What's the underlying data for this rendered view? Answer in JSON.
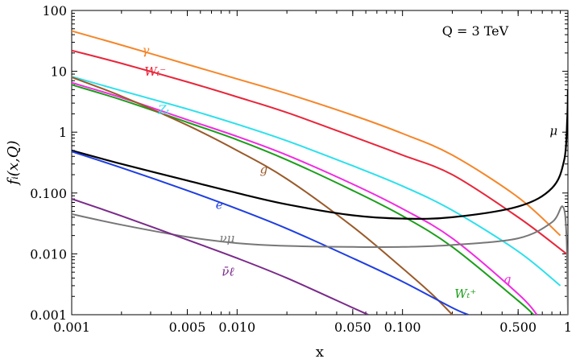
{
  "chart_data": {
    "type": "line",
    "xlabel": "x",
    "ylabel": "fᵢ(x,Q)",
    "annotation": "Q = 3 TeV",
    "xscale": "log",
    "yscale": "log",
    "xlim": [
      0.001,
      1
    ],
    "ylim": [
      0.001,
      100
    ],
    "grid": false,
    "x_ticks": [
      {
        "value": 0.001,
        "label": "0.001"
      },
      {
        "value": 0.005,
        "label": "0.005"
      },
      {
        "value": 0.01,
        "label": "0.010"
      },
      {
        "value": 0.05,
        "label": "0.050"
      },
      {
        "value": 0.1,
        "label": "0.100"
      },
      {
        "value": 0.5,
        "label": "0.500"
      },
      {
        "value": 1,
        "label": "1"
      }
    ],
    "y_ticks": [
      {
        "value": 100,
        "label": "100"
      },
      {
        "value": 10,
        "label": "10"
      },
      {
        "value": 1,
        "label": "1"
      },
      {
        "value": 0.1,
        "label": "0.100"
      },
      {
        "value": 0.01,
        "label": "0.010"
      },
      {
        "value": 0.001,
        "label": "0.001"
      }
    ],
    "series": [
      {
        "name": "γ",
        "color": "#f5862a",
        "x": [
          0.001,
          0.002,
          0.005,
          0.01,
          0.02,
          0.05,
          0.1,
          0.2,
          0.5,
          0.9
        ],
        "y": [
          46,
          27,
          13,
          7.5,
          4.3,
          1.9,
          0.95,
          0.42,
          0.085,
          0.02
        ],
        "label_at": [
          0.0028,
          19
        ]
      },
      {
        "name": "Wₜ⁻",
        "color": "#e8263a",
        "x": [
          0.001,
          0.002,
          0.005,
          0.01,
          0.02,
          0.05,
          0.1,
          0.2,
          0.5,
          0.9,
          1.0
        ],
        "y": [
          22,
          13.5,
          6.7,
          3.8,
          2.1,
          0.85,
          0.42,
          0.2,
          0.04,
          0.012,
          0.0095
        ],
        "label_at": [
          0.0032,
          8.5
        ]
      },
      {
        "name": "Zₜ",
        "color": "#2de0ec",
        "x": [
          0.001,
          0.002,
          0.005,
          0.01,
          0.02,
          0.05,
          0.1,
          0.2,
          0.5,
          0.9
        ],
        "y": [
          8.2,
          4.8,
          2.4,
          1.35,
          0.72,
          0.28,
          0.13,
          0.052,
          0.011,
          0.003
        ],
        "label_at": [
          0.0036,
          2.0
        ]
      },
      {
        "name": "q",
        "color": "#f02ce0",
        "x": [
          0.001,
          0.002,
          0.005,
          0.01,
          0.02,
          0.05,
          0.1,
          0.2,
          0.5,
          0.65
        ],
        "y": [
          6.5,
          3.7,
          1.6,
          0.85,
          0.42,
          0.14,
          0.055,
          0.018,
          0.0022,
          0.001
        ],
        "label_at": [
          0.43,
          0.0033
        ]
      },
      {
        "name": "Wₜ⁺",
        "color": "#1a9e1a",
        "x": [
          0.001,
          0.002,
          0.005,
          0.01,
          0.02,
          0.05,
          0.1,
          0.2,
          0.5,
          0.62
        ],
        "y": [
          6.0,
          3.4,
          1.45,
          0.75,
          0.35,
          0.11,
          0.042,
          0.013,
          0.0017,
          0.001
        ],
        "label_at": [
          0.24,
          0.0019
        ]
      },
      {
        "name": "g",
        "color": "#9a5a2a",
        "x": [
          0.001,
          0.002,
          0.005,
          0.01,
          0.02,
          0.05,
          0.1,
          0.15,
          0.2
        ],
        "y": [
          8.0,
          3.9,
          1.3,
          0.5,
          0.17,
          0.028,
          0.0058,
          0.0022,
          0.001
        ],
        "label_at": [
          0.0145,
          0.21
        ]
      },
      {
        "name": "μ",
        "color": "#000000",
        "x": [
          0.001,
          0.002,
          0.005,
          0.01,
          0.02,
          0.05,
          0.1,
          0.2,
          0.5,
          0.8,
          0.95,
          0.99,
          1.0
        ],
        "y": [
          0.5,
          0.3,
          0.16,
          0.1,
          0.065,
          0.043,
          0.038,
          0.04,
          0.06,
          0.12,
          0.35,
          1.6,
          5.0
        ],
        "label_at": [
          0.82,
          0.9
        ]
      },
      {
        "name": "e",
        "color": "#1f3ee0",
        "x": [
          0.001,
          0.002,
          0.005,
          0.01,
          0.02,
          0.05,
          0.1,
          0.2,
          0.25
        ],
        "y": [
          0.48,
          0.26,
          0.11,
          0.055,
          0.026,
          0.0085,
          0.0035,
          0.0013,
          0.001
        ],
        "label_at": [
          0.0078,
          0.055
        ]
      },
      {
        "name": "νμ",
        "color": "#777777",
        "x": [
          0.001,
          0.002,
          0.005,
          0.01,
          0.02,
          0.05,
          0.1,
          0.2,
          0.5,
          0.8,
          0.93,
          0.98,
          1.0
        ],
        "y": [
          0.045,
          0.03,
          0.019,
          0.015,
          0.0135,
          0.013,
          0.013,
          0.014,
          0.018,
          0.033,
          0.06,
          0.02,
          0.001
        ],
        "label_at": [
          0.0087,
          0.0155
        ]
      },
      {
        "name": "ν̄ℓ",
        "color": "#7a2a8a",
        "x": [
          0.001,
          0.002,
          0.005,
          0.01,
          0.02,
          0.05,
          0.062
        ],
        "y": [
          0.08,
          0.042,
          0.017,
          0.0085,
          0.004,
          0.0013,
          0.001
        ],
        "label_at": [
          0.0088,
          0.0044
        ]
      }
    ]
  }
}
